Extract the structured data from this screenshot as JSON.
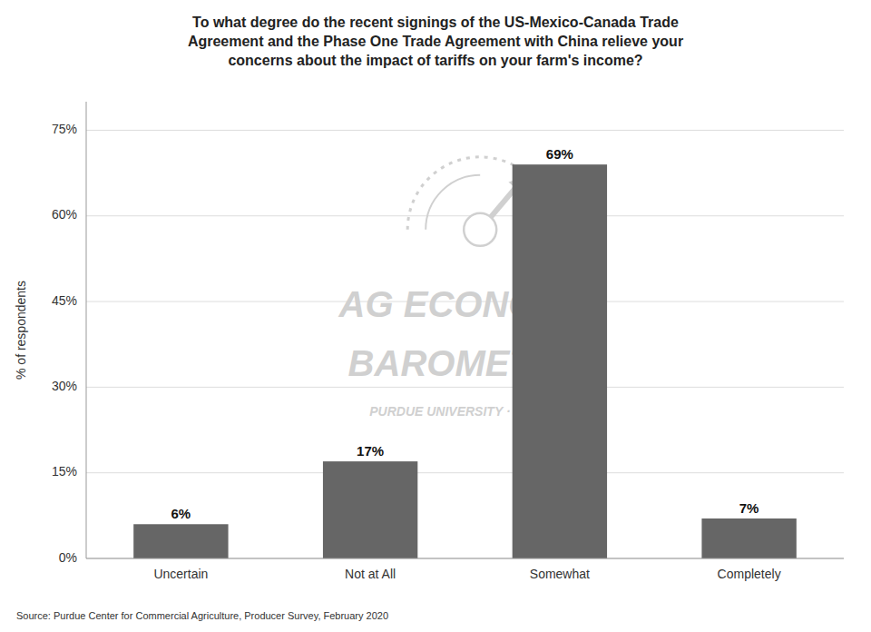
{
  "chart_data": {
    "type": "bar",
    "title": "To what degree do the recent signings of the US-Mexico-Canada Trade\nAgreement and the Phase One Trade Agreement with China relieve your\nconcerns about the impact of tariffs on your farm's income?",
    "categories": [
      "Uncertain",
      "Not at All",
      "Somewhat",
      "Completely"
    ],
    "values": [
      6,
      17,
      69,
      7
    ],
    "value_labels": [
      "6%",
      "17%",
      "69%",
      "7%"
    ],
    "data_labels": true,
    "color": "#666666",
    "ylabel": "% of respondents",
    "ylim": [
      0,
      80
    ],
    "yticks": [
      {
        "value": 0,
        "label": "0%"
      },
      {
        "value": 15,
        "label": "15%"
      },
      {
        "value": 30,
        "label": "30%"
      },
      {
        "value": 45,
        "label": "45%"
      },
      {
        "value": 60,
        "label": "60%"
      },
      {
        "value": 75,
        "label": "75%"
      }
    ],
    "grid": true,
    "annotations": [
      "AG ECONOMY",
      "BAROMETER",
      "PURDUE UNIVERSITY  ·  GROUP"
    ],
    "source": "Source: Purdue Center for Commercial Agriculture, Producer Survey, February 2020"
  }
}
